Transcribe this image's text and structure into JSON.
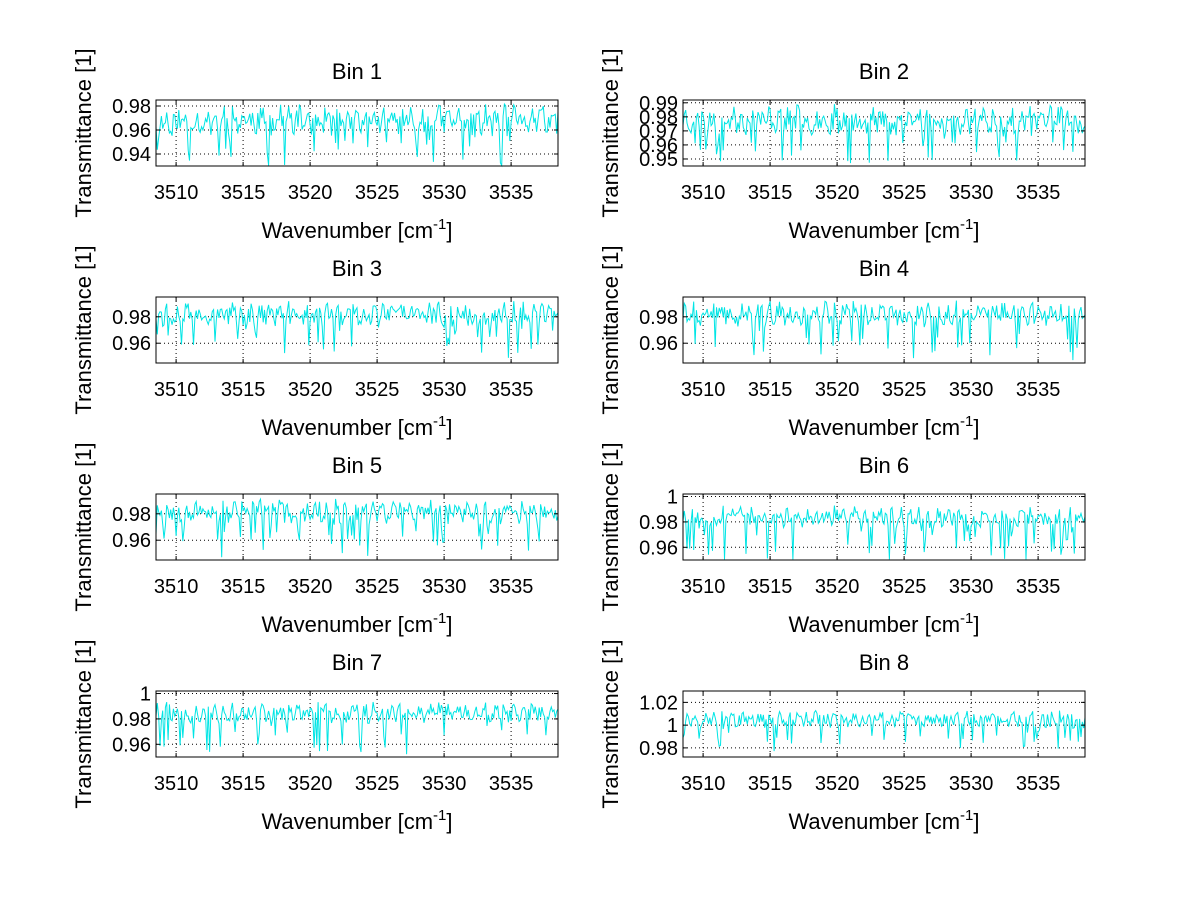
{
  "chart_data": [
    {
      "type": "line",
      "title": "Bin 1",
      "xlabel": "Wavenumber [cm",
      "xlabel_sup": "-1",
      "xlabel_tail": "]",
      "ylabel": "Transmittance [1]",
      "xlim": [
        3508.5,
        3538.5
      ],
      "ylim": [
        0.93,
        0.985
      ],
      "xticks": [
        3510,
        3515,
        3520,
        3525,
        3530,
        3535
      ],
      "yticks": [
        0.94,
        0.96,
        0.98
      ],
      "ytick_labels": [
        "0.94",
        "0.96",
        "0.98"
      ],
      "grid": true,
      "color": "#00e5e5",
      "series": {
        "base": 0.968,
        "amp": 0.012,
        "dip": 0.03,
        "seed": 11
      }
    },
    {
      "type": "line",
      "title": "Bin 2",
      "xlabel": "Wavenumber [cm",
      "xlabel_sup": "-1",
      "xlabel_tail": "]",
      "ylabel": "Transmittance [1]",
      "xlim": [
        3508.5,
        3538.5
      ],
      "ylim": [
        0.945,
        0.992
      ],
      "xticks": [
        3510,
        3515,
        3520,
        3525,
        3530,
        3535
      ],
      "yticks": [
        0.95,
        0.96,
        0.97,
        0.98,
        0.99
      ],
      "ytick_labels": [
        "0.95",
        "0.96",
        "0.97",
        "0.98",
        "0.99"
      ],
      "grid": true,
      "color": "#00e5e5",
      "series": {
        "base": 0.978,
        "amp": 0.01,
        "dip": 0.025,
        "seed": 23
      }
    },
    {
      "type": "line",
      "title": "Bin 3",
      "xlabel": "Wavenumber [cm",
      "xlabel_sup": "-1",
      "xlabel_tail": "]",
      "ylabel": "Transmittance [1]",
      "xlim": [
        3508.5,
        3538.5
      ],
      "ylim": [
        0.945,
        0.995
      ],
      "xticks": [
        3510,
        3515,
        3520,
        3525,
        3530,
        3535
      ],
      "yticks": [
        0.96,
        0.98
      ],
      "ytick_labels": [
        "0.96",
        "0.98"
      ],
      "grid": true,
      "color": "#00e5e5",
      "series": {
        "base": 0.982,
        "amp": 0.009,
        "dip": 0.03,
        "seed": 37
      }
    },
    {
      "type": "line",
      "title": "Bin 4",
      "xlabel": "Wavenumber [cm",
      "xlabel_sup": "-1",
      "xlabel_tail": "]",
      "ylabel": "Transmittance [1]",
      "xlim": [
        3508.5,
        3538.5
      ],
      "ylim": [
        0.945,
        0.995
      ],
      "xticks": [
        3510,
        3515,
        3520,
        3525,
        3530,
        3535
      ],
      "yticks": [
        0.96,
        0.98
      ],
      "ytick_labels": [
        "0.96",
        "0.98"
      ],
      "grid": true,
      "color": "#00e5e5",
      "series": {
        "base": 0.982,
        "amp": 0.009,
        "dip": 0.03,
        "seed": 41
      }
    },
    {
      "type": "line",
      "title": "Bin 5",
      "xlabel": "Wavenumber [cm",
      "xlabel_sup": "-1",
      "xlabel_tail": "]",
      "ylabel": "Transmittance [1]",
      "xlim": [
        3508.5,
        3538.5
      ],
      "ylim": [
        0.945,
        0.995
      ],
      "xticks": [
        3510,
        3515,
        3520,
        3525,
        3530,
        3535
      ],
      "yticks": [
        0.96,
        0.98
      ],
      "ytick_labels": [
        "0.96",
        "0.98"
      ],
      "grid": true,
      "color": "#00e5e5",
      "series": {
        "base": 0.982,
        "amp": 0.009,
        "dip": 0.03,
        "seed": 53
      }
    },
    {
      "type": "line",
      "title": "Bin 6",
      "xlabel": "Wavenumber [cm",
      "xlabel_sup": "-1",
      "xlabel_tail": "]",
      "ylabel": "Transmittance [1]",
      "xlim": [
        3508.5,
        3538.5
      ],
      "ylim": [
        0.95,
        1.002
      ],
      "xticks": [
        3510,
        3515,
        3520,
        3525,
        3530,
        3535
      ],
      "yticks": [
        0.96,
        0.98,
        1
      ],
      "ytick_labels": [
        "0.96",
        "0.98",
        "1"
      ],
      "grid": true,
      "color": "#00e5e5",
      "series": {
        "base": 0.984,
        "amp": 0.008,
        "dip": 0.03,
        "seed": 67
      }
    },
    {
      "type": "line",
      "title": "Bin 7",
      "xlabel": "Wavenumber [cm",
      "xlabel_sup": "-1",
      "xlabel_tail": "]",
      "ylabel": "Transmittance [1]",
      "xlim": [
        3508.5,
        3538.5
      ],
      "ylim": [
        0.95,
        1.002
      ],
      "xticks": [
        3510,
        3515,
        3520,
        3525,
        3530,
        3535
      ],
      "yticks": [
        0.96,
        0.98,
        1
      ],
      "ytick_labels": [
        "0.96",
        "0.98",
        "1"
      ],
      "grid": true,
      "color": "#00e5e5",
      "series": {
        "base": 0.985,
        "amp": 0.008,
        "dip": 0.032,
        "seed": 79
      }
    },
    {
      "type": "line",
      "title": "Bin 8",
      "xlabel": "Wavenumber [cm",
      "xlabel_sup": "-1",
      "xlabel_tail": "]",
      "ylabel": "Transmittance [1]",
      "xlim": [
        3508.5,
        3538.5
      ],
      "ylim": [
        0.972,
        1.03
      ],
      "xticks": [
        3510,
        3515,
        3520,
        3525,
        3530,
        3535
      ],
      "yticks": [
        0.98,
        1,
        1.02
      ],
      "ytick_labels": [
        "0.98",
        "1",
        "1.02"
      ],
      "grid": true,
      "color": "#00e5e5",
      "series": {
        "base": 1.005,
        "amp": 0.007,
        "dip": 0.025,
        "seed": 97
      }
    }
  ]
}
